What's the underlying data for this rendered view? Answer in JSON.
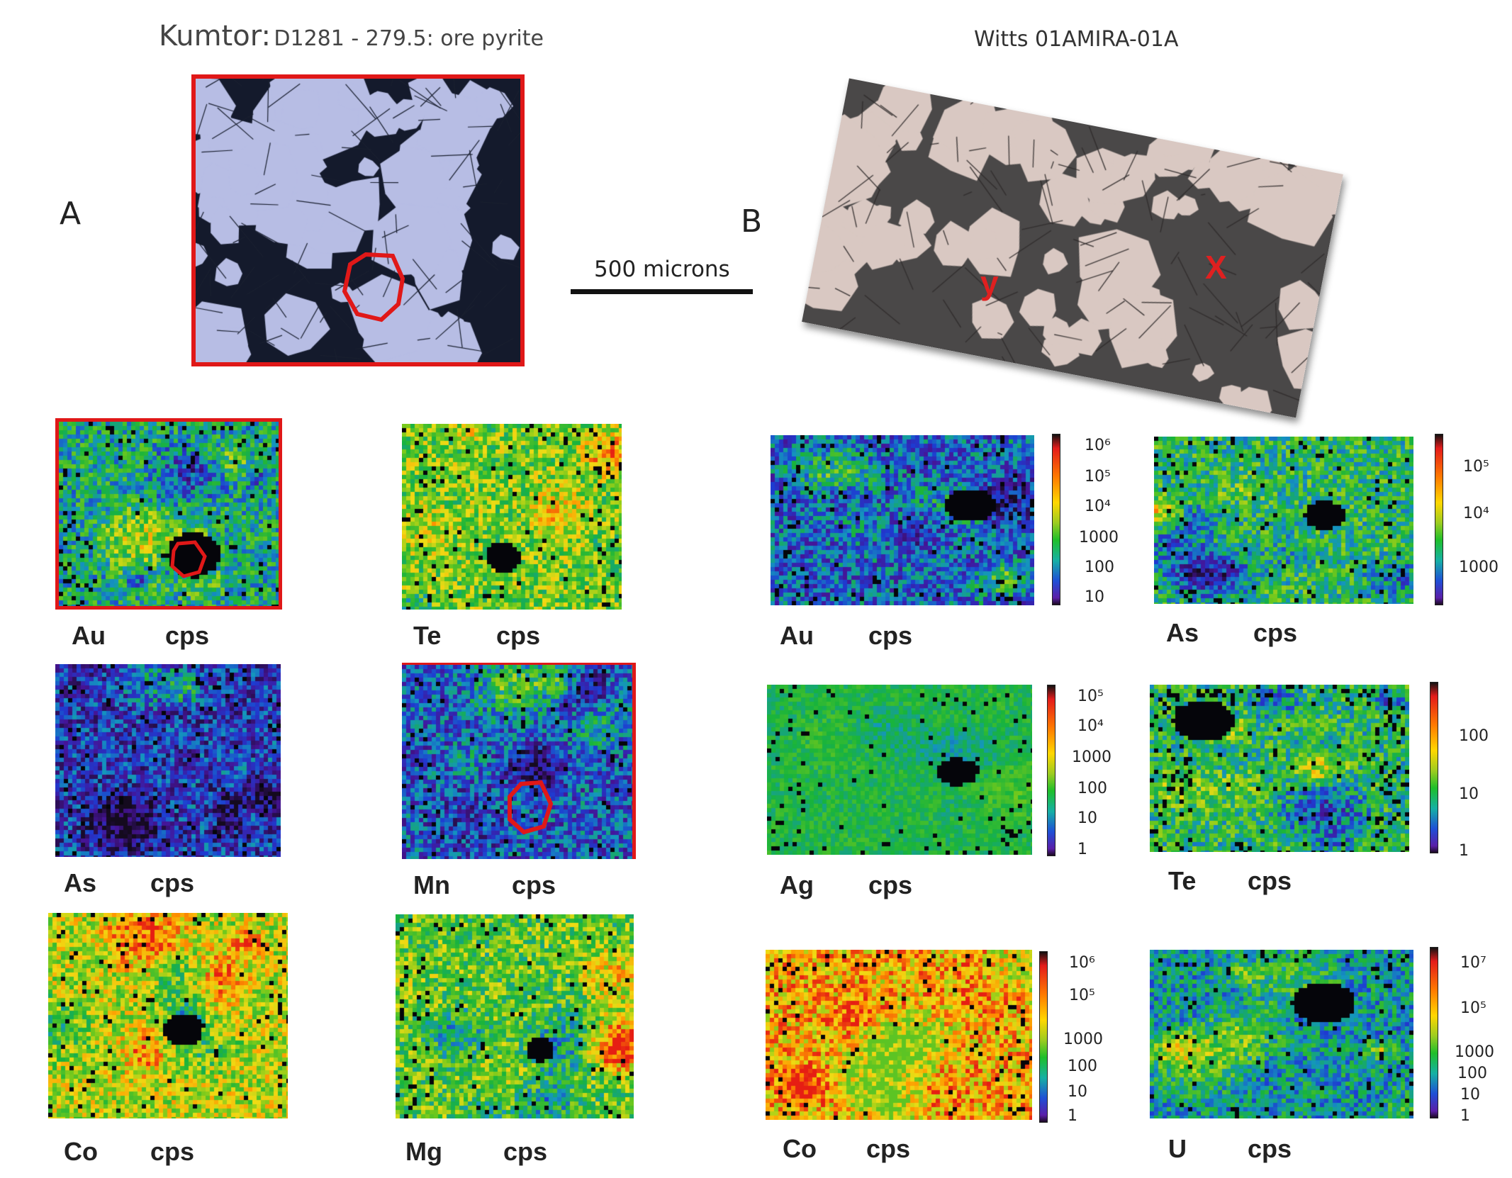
{
  "left_title": {
    "main": "Kumtor:",
    "sub": "D1281 - 279.5: ore pyrite"
  },
  "right_title": "Witts 01AMIRA-01A",
  "panel_a": "A",
  "panel_b": "B",
  "scale_bar_label": "500 microns",
  "photo_b_markers": {
    "y": "y",
    "x": "X"
  },
  "unit": "cps",
  "kumtor_maps": [
    {
      "element": "Au",
      "unit": "cps"
    },
    {
      "element": "Te",
      "unit": "cps"
    },
    {
      "element": "As",
      "unit": "cps"
    },
    {
      "element": "Mn",
      "unit": "cps"
    },
    {
      "element": "Co",
      "unit": "cps"
    },
    {
      "element": "Mg",
      "unit": "cps"
    }
  ],
  "witts_maps": [
    {
      "element": "Au",
      "unit": "cps",
      "ticks": [
        "10⁶",
        "10⁵",
        "10⁴",
        "1000",
        "100",
        "10"
      ]
    },
    {
      "element": "As",
      "unit": "cps",
      "ticks": [
        "10⁵",
        "10⁴",
        "1000"
      ]
    },
    {
      "element": "Ag",
      "unit": "cps",
      "ticks": [
        "10⁵",
        "10⁴",
        "1000",
        "100",
        "10",
        "1"
      ]
    },
    {
      "element": "Te",
      "unit": "cps",
      "ticks": [
        "100",
        "10",
        "1"
      ]
    },
    {
      "element": "Co",
      "unit": "cps",
      "ticks": [
        "10⁶",
        "10⁵",
        "1000",
        "100",
        "10",
        "1"
      ]
    },
    {
      "element": "U",
      "unit": "cps",
      "ticks": [
        "10⁷",
        "10⁵",
        "1000",
        "100",
        "10",
        "1"
      ]
    }
  ]
}
